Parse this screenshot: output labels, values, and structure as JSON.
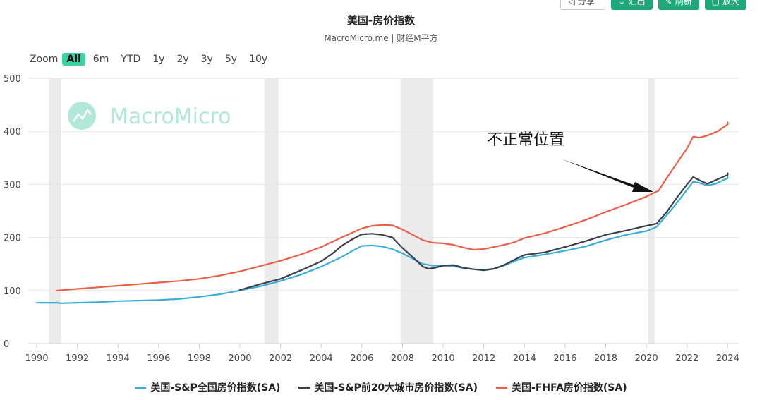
{
  "toolbar": {
    "share_label": "分享",
    "export_label": "汇出",
    "refresh_label": "刷新",
    "expand_label": "放大"
  },
  "header": {
    "title": "美国-房价指数",
    "subtitle": "MacroMicro.me | 财经M平方"
  },
  "zoom": {
    "label": "Zoom",
    "options": [
      "All",
      "6m",
      "YTD",
      "1y",
      "2y",
      "3y",
      "5y",
      "10y"
    ],
    "active": "All"
  },
  "watermark": "MacroMicro",
  "annotation": "不正常位置",
  "colors": {
    "sp_national": "#3aaed8",
    "sp_20city": "#3a3f4b",
    "fhfa": "#e8604a",
    "recession": "#ebebeb",
    "watermark": "#9fe3cf"
  },
  "chart_data": {
    "type": "line",
    "title": "美国-房价指数",
    "ylim": [
      0,
      500
    ],
    "yticks": [
      0,
      100,
      200,
      300,
      400,
      500
    ],
    "xlim": [
      1990,
      2024.3
    ],
    "xticks": [
      1990,
      1992,
      1994,
      1996,
      1998,
      2000,
      2002,
      2004,
      2006,
      2008,
      2010,
      2012,
      2014,
      2016,
      2018,
      2020,
      2022,
      2024
    ],
    "grid": true,
    "legend_position": "bottom",
    "recessions": [
      [
        1990.6,
        1991.2
      ],
      [
        2001.2,
        2001.9
      ],
      [
        2007.9,
        2009.5
      ],
      [
        2020.1,
        2020.4
      ]
    ],
    "series": [
      {
        "name": "美国-S&P全国房价指数(SA)",
        "color": "#3aaed8",
        "x": [
          1990,
          1991,
          1991.2,
          1992,
          1993,
          1994,
          1995,
          1996,
          1997,
          1998,
          1999,
          2000,
          2001,
          2002,
          2003,
          2004,
          2005,
          2005.5,
          2006,
          2006.5,
          2007,
          2007.5,
          2008,
          2008.5,
          2009,
          2009.5,
          2010,
          2010.5,
          2011,
          2011.5,
          2012,
          2012.5,
          2013,
          2013.5,
          2014,
          2015,
          2016,
          2017,
          2018,
          2019,
          2020,
          2020.5,
          2021,
          2021.5,
          2022,
          2022.3,
          2022.6,
          2023,
          2023.4,
          2024,
          2024
        ],
        "y": [
          77,
          77,
          76,
          77,
          78,
          80,
          81,
          82,
          84,
          88,
          93,
          100,
          108,
          118,
          130,
          145,
          163,
          174,
          184,
          185,
          183,
          178,
          170,
          160,
          150,
          147,
          147,
          146,
          142,
          140,
          139,
          141,
          147,
          155,
          162,
          168,
          175,
          183,
          195,
          205,
          212,
          220,
          242,
          265,
          290,
          305,
          303,
          298,
          301,
          312,
          314
        ]
      },
      {
        "name": "美国-S&P前20大城市房价指数(SA)",
        "color": "#3a3f4b",
        "x": [
          2000,
          2001,
          2002,
          2003,
          2004,
          2004.5,
          2005,
          2005.5,
          2006,
          2006.5,
          2007,
          2007.5,
          2008,
          2008.5,
          2009,
          2009.3,
          2009.6,
          2010,
          2010.5,
          2011,
          2011.5,
          2012,
          2012.5,
          2013,
          2013.5,
          2014,
          2015,
          2016,
          2017,
          2018,
          2019,
          2020,
          2020.5,
          2021,
          2021.5,
          2022,
          2022.3,
          2022.6,
          2023,
          2023.4,
          2024,
          2024
        ],
        "y": [
          101,
          112,
          122,
          138,
          155,
          168,
          184,
          196,
          206,
          207,
          205,
          200,
          180,
          163,
          145,
          141,
          143,
          147,
          148,
          143,
          140,
          138,
          141,
          148,
          158,
          167,
          172,
          182,
          193,
          205,
          213,
          222,
          226,
          248,
          275,
          300,
          314,
          308,
          301,
          308,
          318,
          321
        ]
      },
      {
        "name": "美国-FHFA房价指数(SA)",
        "color": "#e8604a",
        "x": [
          1991,
          1992,
          1993,
          1994,
          1995,
          1996,
          1997,
          1998,
          1999,
          2000,
          2001,
          2002,
          2003,
          2004,
          2005,
          2006,
          2006.5,
          2007,
          2007.5,
          2008,
          2008.5,
          2009,
          2009.5,
          2010,
          2010.5,
          2011,
          2011.5,
          2012,
          2012.5,
          2013,
          2013.5,
          2014,
          2015,
          2016,
          2017,
          2018,
          2019,
          2020,
          2020.3,
          2020.6,
          2021,
          2021.5,
          2022,
          2022.3,
          2022.6,
          2023,
          2023.5,
          2024,
          2024
        ],
        "y": [
          100,
          103,
          106,
          109,
          112,
          115,
          118,
          122,
          128,
          136,
          146,
          156,
          168,
          182,
          200,
          217,
          222,
          224,
          223,
          215,
          205,
          195,
          190,
          189,
          186,
          181,
          177,
          178,
          182,
          186,
          191,
          199,
          208,
          220,
          233,
          248,
          262,
          277,
          283,
          288,
          312,
          340,
          368,
          390,
          388,
          392,
          400,
          413,
          417
        ]
      }
    ]
  }
}
